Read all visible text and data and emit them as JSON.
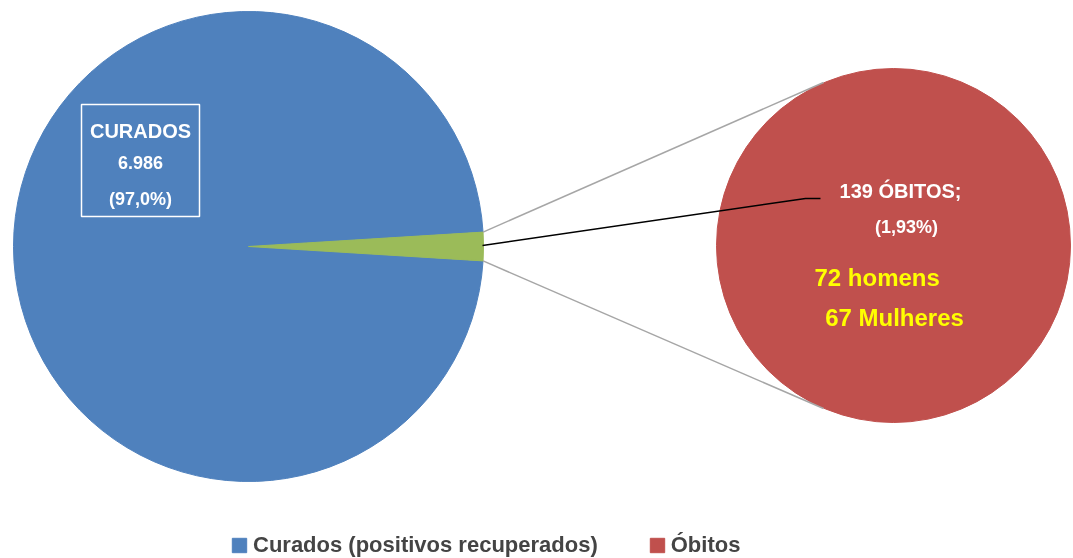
{
  "chart_data": [
    {
      "type": "pie",
      "categories": [
        "Curados (positivos recuperados)",
        null
      ],
      "values": [
        6986,
        139
      ],
      "colors": [
        "#4f81bd",
        "#9bbb59"
      ],
      "value_labels": [
        "CURADOS\n6.986\n(97,0%)",
        null
      ],
      "legend": "bottom"
    },
    {
      "type": "pie",
      "categories": [
        "Óbitos"
      ],
      "values": [
        139
      ],
      "colors": [
        "#c0504d"
      ],
      "value_labels": [
        "139 ÓBITOS;\n(1,93%)"
      ],
      "annotations": [
        "72  homens",
        "67 Mulheres"
      ],
      "legend": "bottom"
    }
  ]
}
